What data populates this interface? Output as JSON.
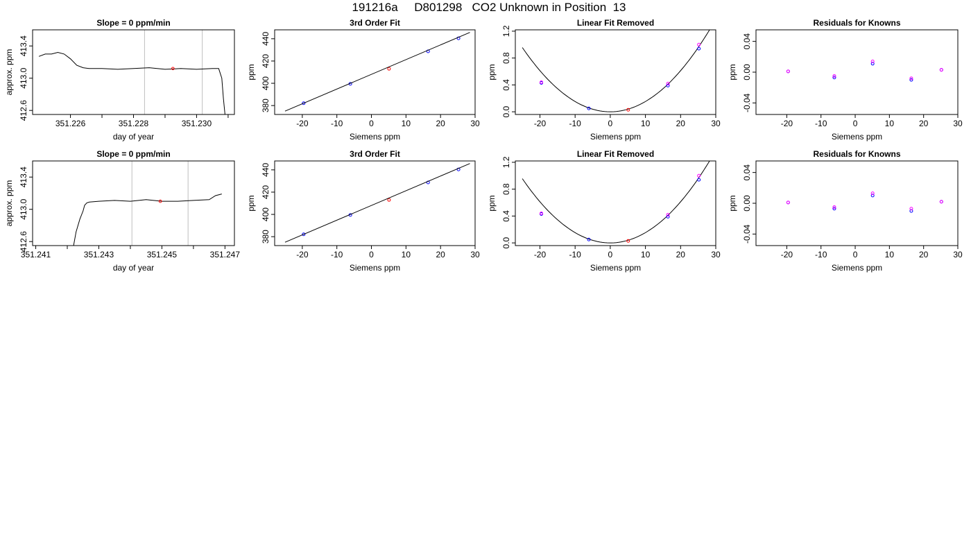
{
  "page": {
    "title": "191216a     D801298   CO2 Unknown in Position  13"
  },
  "colors": {
    "known": "#0000ff",
    "known_alt": "#ff00ff",
    "unknown": "#ff0000",
    "line": "#000000",
    "marker_line": "#bebebe"
  },
  "chart_data": [
    {
      "id": "r1-trace",
      "type": "line",
      "title": "Slope =  0  ppm/min",
      "xlabel": "day of year",
      "ylabel": "approx. ppm",
      "xlim": [
        351.2248,
        351.2312
      ],
      "ylim": [
        412.55,
        413.6
      ],
      "xticks": [
        "351.226",
        "351.228",
        "351.230"
      ],
      "xtick_values": [
        351.226,
        351.228,
        351.23
      ],
      "minor_xticks": [
        351.227,
        351.229,
        351.231
      ],
      "yticks": [
        "412.6",
        "413.0",
        "413.4"
      ],
      "ytick_values": [
        412.6,
        413.0,
        413.4
      ],
      "vlines": [
        351.22835,
        351.23018
      ],
      "series": [
        {
          "x": [
            351.225,
            351.2252,
            351.2254,
            351.2256,
            351.2258,
            351.226,
            351.2262,
            351.2264,
            351.2266,
            351.227,
            351.2275,
            351.228,
            351.2285,
            351.229,
            351.2295,
            351.23,
            351.2305,
            351.2307,
            351.2308,
            351.23085,
            351.2309
          ],
          "y": [
            413.27,
            413.3,
            413.3,
            413.32,
            413.3,
            413.24,
            413.16,
            413.13,
            413.12,
            413.12,
            413.11,
            413.12,
            413.13,
            413.11,
            413.12,
            413.11,
            413.12,
            413.12,
            413.0,
            412.75,
            412.55
          ]
        }
      ],
      "markers": [
        {
          "x": 351.22925,
          "y": 413.12,
          "color": "#ff0000"
        }
      ]
    },
    {
      "id": "r1-fit",
      "type": "scatter",
      "title": "3rd Order Fit",
      "xlabel": "Siemens ppm",
      "ylabel": "ppm",
      "xlim": [
        -28,
        30
      ],
      "ylim": [
        372,
        448
      ],
      "xticks": [
        "-20",
        "-10",
        "0",
        "10",
        "20",
        "30"
      ],
      "xtick_values": [
        -20,
        -10,
        0,
        10,
        20,
        30
      ],
      "yticks": [
        "380",
        "400",
        "420",
        "440"
      ],
      "ytick_values": [
        380,
        400,
        420,
        440
      ],
      "curve": {
        "x": [
          -25,
          28.5
        ],
        "y": [
          375.0,
          445.7
        ]
      },
      "points": [
        {
          "x": -19.6,
          "y": 382.1,
          "color": "#0000ff"
        },
        {
          "x": -6.1,
          "y": 399.5,
          "color": "#0000ff"
        },
        {
          "x": 5.1,
          "y": 413.0,
          "color": "#ff0000"
        },
        {
          "x": 16.4,
          "y": 428.7,
          "color": "#0000ff"
        },
        {
          "x": 25.2,
          "y": 440.4,
          "color": "#0000ff"
        }
      ]
    },
    {
      "id": "r1-lin",
      "type": "scatter",
      "title": "Linear Fit Removed",
      "xlabel": "Siemens ppm",
      "ylabel": "ppm",
      "xlim": [
        -27,
        30
      ],
      "ylim": [
        -0.04,
        1.22
      ],
      "xticks": [
        "-20",
        "-10",
        "0",
        "10",
        "20",
        "30"
      ],
      "xtick_values": [
        -20,
        -10,
        0,
        10,
        20,
        30
      ],
      "yticks": [
        "0.0",
        "0.4",
        "0.8",
        "1.2"
      ],
      "ytick_values": [
        0.0,
        0.4,
        0.8,
        1.2
      ],
      "parabola": {
        "a": 0.00153,
        "from": -25,
        "to": 28.5
      },
      "points": [
        {
          "x": -19.6,
          "y": 0.43,
          "color": "#0000ff"
        },
        {
          "x": -19.6,
          "y": 0.44,
          "color": "#ff00ff"
        },
        {
          "x": -6.1,
          "y": 0.05,
          "color": "#0000ff"
        },
        {
          "x": 5.1,
          "y": 0.03,
          "color": "#ff0000"
        },
        {
          "x": 16.4,
          "y": 0.39,
          "color": "#0000ff"
        },
        {
          "x": 16.4,
          "y": 0.42,
          "color": "#ff00ff"
        },
        {
          "x": 25.2,
          "y": 0.94,
          "color": "#0000ff"
        },
        {
          "x": 25.2,
          "y": 1.0,
          "color": "#ff00ff"
        }
      ]
    },
    {
      "id": "r1-res",
      "type": "scatter",
      "title": "Residuals for Knowns",
      "xlabel": "Siemens ppm",
      "ylabel": "ppm",
      "xlim": [
        -29,
        30
      ],
      "ylim": [
        -0.055,
        0.055
      ],
      "xticks": [
        "-20",
        "-10",
        "0",
        "10",
        "20",
        "30"
      ],
      "xtick_values": [
        -20,
        -10,
        0,
        10,
        20,
        30
      ],
      "yticks": [
        "-0.04",
        "0.00",
        "0.04"
      ],
      "ytick_values": [
        -0.04,
        0.0,
        0.04
      ],
      "points": [
        {
          "x": -19.6,
          "y": 0.001,
          "color": "#0000ff"
        },
        {
          "x": -19.6,
          "y": 0.001,
          "color": "#ff00ff"
        },
        {
          "x": -6.1,
          "y": -0.007,
          "color": "#0000ff"
        },
        {
          "x": -6.1,
          "y": -0.005,
          "color": "#ff00ff"
        },
        {
          "x": 5.1,
          "y": 0.011,
          "color": "#0000ff"
        },
        {
          "x": 5.1,
          "y": 0.014,
          "color": "#ff00ff"
        },
        {
          "x": 16.4,
          "y": -0.01,
          "color": "#0000ff"
        },
        {
          "x": 16.4,
          "y": -0.008,
          "color": "#ff00ff"
        },
        {
          "x": 25.2,
          "y": 0.003,
          "color": "#0000ff"
        },
        {
          "x": 25.2,
          "y": 0.003,
          "color": "#ff00ff"
        }
      ]
    },
    {
      "id": "r2-trace",
      "type": "line",
      "title": "Slope =  0  ppm/min",
      "xlabel": "day of year",
      "ylabel": "approx. ppm",
      "xlim": [
        351.2409,
        351.2473
      ],
      "ylim": [
        412.55,
        413.6
      ],
      "xticks": [
        "351.241",
        "351.243",
        "351.245",
        "351.247"
      ],
      "xtick_values": [
        351.241,
        351.243,
        351.245,
        351.247
      ],
      "minor_xticks": [
        351.242,
        351.244,
        351.246
      ],
      "yticks": [
        "412.6",
        "413.0",
        "413.4"
      ],
      "ytick_values": [
        412.6,
        413.0,
        413.4
      ],
      "vlines": [
        351.24405,
        351.24583
      ],
      "series": [
        {
          "x": [
            351.2422,
            351.24228,
            351.2424,
            351.2425,
            351.24255,
            351.24262,
            351.2427,
            351.243,
            351.2435,
            351.244,
            351.2445,
            351.245,
            351.2455,
            351.246,
            351.2465,
            351.2467,
            351.2469
          ],
          "y": [
            412.55,
            412.72,
            412.88,
            412.98,
            413.05,
            413.08,
            413.09,
            413.1,
            413.11,
            413.1,
            413.12,
            413.1,
            413.1,
            413.11,
            413.12,
            413.17,
            413.19
          ]
        }
      ],
      "markers": [
        {
          "x": 351.24495,
          "y": 413.1,
          "color": "#ff0000"
        }
      ]
    },
    {
      "id": "r2-fit",
      "type": "scatter",
      "title": "3rd Order Fit",
      "xlabel": "Siemens ppm",
      "ylabel": "ppm",
      "xlim": [
        -28,
        30
      ],
      "ylim": [
        372,
        448
      ],
      "xticks": [
        "-20",
        "-10",
        "0",
        "10",
        "20",
        "30"
      ],
      "xtick_values": [
        -20,
        -10,
        0,
        10,
        20,
        30
      ],
      "yticks": [
        "380",
        "400",
        "420",
        "440"
      ],
      "ytick_values": [
        380,
        400,
        420,
        440
      ],
      "curve": {
        "x": [
          -25,
          28.5
        ],
        "y": [
          375.0,
          445.7
        ]
      },
      "points": [
        {
          "x": -19.6,
          "y": 382.1,
          "color": "#0000ff"
        },
        {
          "x": -6.1,
          "y": 399.5,
          "color": "#0000ff"
        },
        {
          "x": 5.1,
          "y": 413.0,
          "color": "#ff0000"
        },
        {
          "x": 16.4,
          "y": 428.7,
          "color": "#0000ff"
        },
        {
          "x": 25.2,
          "y": 440.4,
          "color": "#0000ff"
        }
      ]
    },
    {
      "id": "r2-lin",
      "type": "scatter",
      "title": "Linear Fit Removed",
      "xlabel": "Siemens ppm",
      "ylabel": "ppm",
      "xlim": [
        -27,
        30
      ],
      "ylim": [
        -0.04,
        1.22
      ],
      "xticks": [
        "-20",
        "-10",
        "0",
        "10",
        "20",
        "30"
      ],
      "xtick_values": [
        -20,
        -10,
        0,
        10,
        20,
        30
      ],
      "yticks": [
        "0.0",
        "0.4",
        "0.8",
        "1.2"
      ],
      "ytick_values": [
        0.0,
        0.4,
        0.8,
        1.2
      ],
      "parabola": {
        "a": 0.00153,
        "from": -25,
        "to": 28.5
      },
      "points": [
        {
          "x": -19.6,
          "y": 0.43,
          "color": "#0000ff"
        },
        {
          "x": -19.6,
          "y": 0.44,
          "color": "#ff00ff"
        },
        {
          "x": -6.1,
          "y": 0.05,
          "color": "#0000ff"
        },
        {
          "x": 5.1,
          "y": 0.03,
          "color": "#ff0000"
        },
        {
          "x": 16.4,
          "y": 0.39,
          "color": "#0000ff"
        },
        {
          "x": 16.4,
          "y": 0.42,
          "color": "#ff00ff"
        },
        {
          "x": 25.2,
          "y": 0.94,
          "color": "#0000ff"
        },
        {
          "x": 25.2,
          "y": 1.0,
          "color": "#ff00ff"
        }
      ]
    },
    {
      "id": "r2-res",
      "type": "scatter",
      "title": "Residuals for Knowns",
      "xlabel": "Siemens ppm",
      "ylabel": "ppm",
      "xlim": [
        -29,
        30
      ],
      "ylim": [
        -0.055,
        0.055
      ],
      "xticks": [
        "-20",
        "-10",
        "0",
        "10",
        "20",
        "30"
      ],
      "xtick_values": [
        -20,
        -10,
        0,
        10,
        20,
        30
      ],
      "yticks": [
        "-0.04",
        "0.00",
        "0.04"
      ],
      "ytick_values": [
        -0.04,
        0.0,
        0.04
      ],
      "points": [
        {
          "x": -19.6,
          "y": 0.001,
          "color": "#0000ff"
        },
        {
          "x": -19.6,
          "y": 0.001,
          "color": "#ff00ff"
        },
        {
          "x": -6.1,
          "y": -0.007,
          "color": "#0000ff"
        },
        {
          "x": -6.1,
          "y": -0.005,
          "color": "#ff00ff"
        },
        {
          "x": 5.1,
          "y": 0.01,
          "color": "#0000ff"
        },
        {
          "x": 5.1,
          "y": 0.013,
          "color": "#ff00ff"
        },
        {
          "x": 16.4,
          "y": -0.01,
          "color": "#0000ff"
        },
        {
          "x": 16.4,
          "y": -0.007,
          "color": "#ff00ff"
        },
        {
          "x": 25.2,
          "y": 0.002,
          "color": "#0000ff"
        },
        {
          "x": 25.2,
          "y": 0.002,
          "color": "#ff00ff"
        }
      ]
    }
  ]
}
